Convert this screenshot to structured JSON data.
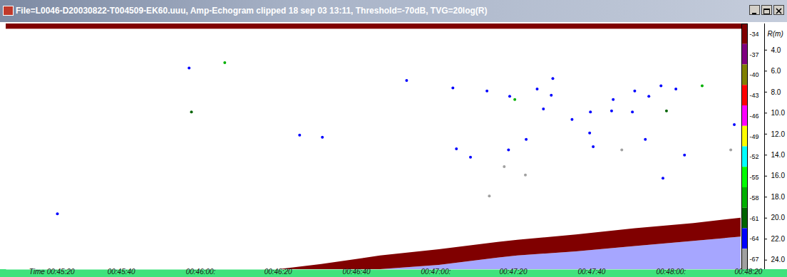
{
  "chart_data": {
    "type": "echogram",
    "title": "File=L0046-D20030822-T004509-EK60.uuu, Amp-Echogram clipped 18 sep 03 13:11, Threshold=-70dB, TVG=20log(R)",
    "xlim": [
      2714.5,
      2902.2
    ],
    "xticks": [
      {
        "value": 2720,
        "label": "Time 00:45:20"
      },
      {
        "value": 2740,
        "label": "00:45:40"
      },
      {
        "value": 2760,
        "label": "00:46:00:"
      },
      {
        "value": 2780,
        "label": "00:46:20"
      },
      {
        "value": 2800,
        "label": "00:46:40"
      },
      {
        "value": 2820,
        "label": "00:47:00:"
      },
      {
        "value": 2840,
        "label": "00:47:20"
      },
      {
        "value": 2860,
        "label": "00:47:40"
      },
      {
        "value": 2880,
        "label": "00:48:00:"
      },
      {
        "value": 2900,
        "label": "00:48:20"
      }
    ],
    "ylabel": "R(m)",
    "ylim": [
      1.5,
      24.9
    ],
    "yticks": [
      {
        "value": 4,
        "label": "4.0"
      },
      {
        "value": 6,
        "label": "6.0"
      },
      {
        "value": 8,
        "label": "8.0"
      },
      {
        "value": 10,
        "label": "10.0"
      },
      {
        "value": 12,
        "label": "12.0"
      },
      {
        "value": 14,
        "label": "14.0"
      },
      {
        "value": 16,
        "label": "16.0"
      },
      {
        "value": 18,
        "label": "18.0"
      },
      {
        "value": 20,
        "label": "20.0"
      },
      {
        "value": 22,
        "label": "22.0"
      },
      {
        "value": 24,
        "label": "24.0"
      }
    ],
    "colorbar": {
      "range": [
        -68.5,
        -32.5
      ],
      "ticks": [
        -34,
        -37,
        -40,
        -43,
        -46,
        -49,
        -52,
        -55,
        -58,
        -61,
        -64,
        -67
      ],
      "colors": [
        "#800000",
        "#800080",
        "#808000",
        "#ff0000",
        "#ff00ff",
        "#ffff00",
        "#00ffff",
        "#00ff00",
        "#00b000",
        "#006400",
        "#0000ff",
        "#a0a0a0"
      ]
    },
    "surface_band": {
      "top": 1.5,
      "bottom": 2.0,
      "value": -34
    },
    "seabed": {
      "x": [
        2784,
        2795,
        2810,
        2825,
        2840,
        2845,
        2860,
        2875,
        2890,
        2902
      ],
      "top": [
        24.9,
        24.4,
        23.6,
        23.0,
        22.3,
        22.1,
        21.6,
        21.0,
        20.5,
        20.0
      ],
      "bottom": [
        24.9,
        24.9,
        24.9,
        24.5,
        23.8,
        23.6,
        23.2,
        22.7,
        22.2,
        21.8
      ],
      "value": -34,
      "below_value": -64
    },
    "targets": {
      "x": [
        2727.6,
        2761.8,
        2761.2,
        2770.3,
        2789.4,
        2795.2,
        2816.7,
        2828.5,
        2829.4,
        2837.2,
        2843.0,
        2842.7,
        2844.3,
        2850.0,
        2853.6,
        2854.0,
        2851.6,
        2847.2,
        2858.9,
        2863.4,
        2863.6,
        2864.3,
        2869.4,
        2869.0,
        2871.6,
        2874.9,
        2874.3,
        2877.6,
        2878.5,
        2881.6,
        2883.0,
        2885.4,
        2887.6,
        2882.1,
        2841.6,
        2837.8,
        2847.0,
        2892.1,
        2899.4,
        2900.3,
        2833.0
      ],
      "range": [
        19.6,
        9.9,
        5.7,
        5.2,
        12.1,
        12.3,
        6.9,
        7.6,
        13.4,
        7.9,
        8.4,
        13.5,
        8.7,
        7.7,
        8.3,
        6.7,
        9.6,
        12.5,
        10.6,
        11.9,
        9.9,
        13.2,
        8.7,
        9.8,
        13.5,
        7.9,
        9.9,
        12.5,
        8.4,
        7.4,
        9.8,
        7.7,
        14.0,
        16.2,
        15.1,
        17.9,
        15.9,
        7.4,
        13.5,
        11.1,
        14.2
      ],
      "values": [
        -64,
        -61,
        -64,
        -58,
        -64,
        -64,
        -64,
        -64,
        -64,
        -64,
        -64,
        -64,
        -58,
        -64,
        -64,
        -64,
        -64,
        -64,
        -64,
        -64,
        -64,
        -64,
        -64,
        -64,
        -67,
        -64,
        -64,
        -64,
        -64,
        -64,
        -61,
        -64,
        -64,
        -64,
        -67,
        -67,
        -67,
        -58,
        -67,
        -64,
        -64
      ]
    }
  }
}
